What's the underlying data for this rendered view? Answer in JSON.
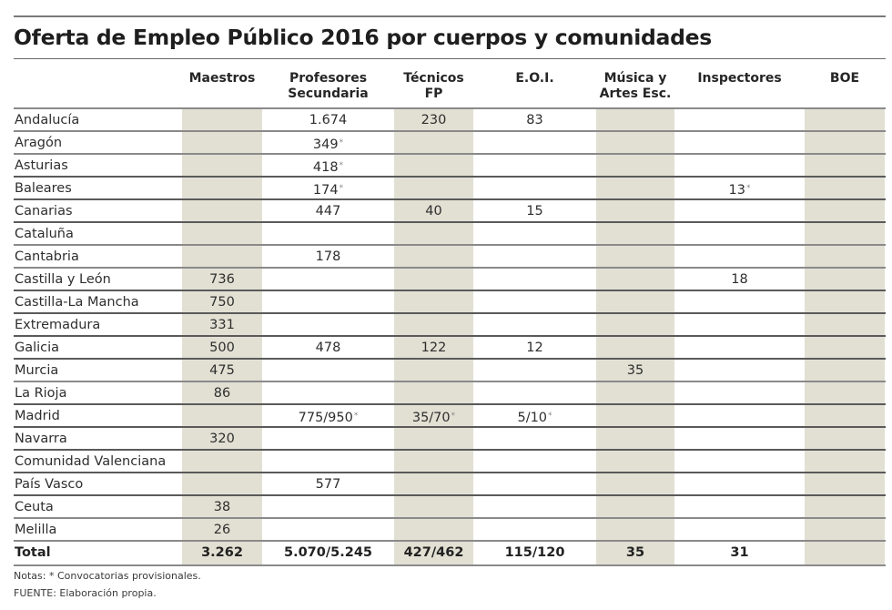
{
  "title": "Oferta de Empleo Público 2016 por cuerpos y comunidades",
  "columns": [
    {
      "key": "maestros",
      "label_line1": "Maestros",
      "label_line2": "",
      "shaded": true
    },
    {
      "key": "secundaria",
      "label_line1": "Profesores",
      "label_line2": "Secundaria",
      "shaded": false
    },
    {
      "key": "tecnicos_fp",
      "label_line1": "Técnicos",
      "label_line2": "FP",
      "shaded": true
    },
    {
      "key": "eoi",
      "label_line1": "E.O.I.",
      "label_line2": "",
      "shaded": false
    },
    {
      "key": "musica",
      "label_line1": "Música y",
      "label_line2": "Artes Esc.",
      "shaded": true
    },
    {
      "key": "inspectores",
      "label_line1": "Inspectores",
      "label_line2": "",
      "shaded": false
    },
    {
      "key": "boe",
      "label_line1": "BOE",
      "label_line2": "",
      "shaded": true
    }
  ],
  "rows": [
    {
      "name": "Andalucía",
      "values": [
        "",
        "1.674",
        "230",
        "83",
        "",
        "",
        ""
      ],
      "provisional": [
        false,
        false,
        false,
        false,
        false,
        false,
        false
      ]
    },
    {
      "name": "Aragón",
      "values": [
        "",
        "349",
        "",
        "",
        "",
        "",
        ""
      ],
      "provisional": [
        false,
        true,
        false,
        false,
        false,
        false,
        false
      ]
    },
    {
      "name": "Asturias",
      "values": [
        "",
        "418",
        "",
        "",
        "",
        "",
        ""
      ],
      "provisional": [
        false,
        true,
        false,
        false,
        false,
        false,
        false
      ]
    },
    {
      "name": "Baleares",
      "values": [
        "",
        "174",
        "",
        "",
        "",
        "13",
        ""
      ],
      "provisional": [
        false,
        true,
        false,
        false,
        false,
        true,
        false
      ]
    },
    {
      "name": "Canarias",
      "values": [
        "",
        "447",
        "40",
        "15",
        "",
        "",
        ""
      ],
      "provisional": [
        false,
        false,
        false,
        false,
        false,
        false,
        false
      ]
    },
    {
      "name": "Cataluña",
      "values": [
        "",
        "",
        "",
        "",
        "",
        "",
        ""
      ],
      "provisional": [
        false,
        false,
        false,
        false,
        false,
        false,
        false
      ]
    },
    {
      "name": "Cantabria",
      "values": [
        "",
        "178",
        "",
        "",
        "",
        "",
        ""
      ],
      "provisional": [
        false,
        false,
        false,
        false,
        false,
        false,
        false
      ]
    },
    {
      "name": "Castilla y León",
      "values": [
        "736",
        "",
        "",
        "",
        "",
        "18",
        ""
      ],
      "provisional": [
        false,
        false,
        false,
        false,
        false,
        false,
        false
      ]
    },
    {
      "name": "Castilla-La Mancha",
      "values": [
        "750",
        "",
        "",
        "",
        "",
        "",
        ""
      ],
      "provisional": [
        false,
        false,
        false,
        false,
        false,
        false,
        false
      ]
    },
    {
      "name": "Extremadura",
      "values": [
        "331",
        "",
        "",
        "",
        "",
        "",
        ""
      ],
      "provisional": [
        false,
        false,
        false,
        false,
        false,
        false,
        false
      ]
    },
    {
      "name": "Galicia",
      "values": [
        "500",
        "478",
        "122",
        "12",
        "",
        "",
        ""
      ],
      "provisional": [
        false,
        false,
        false,
        false,
        false,
        false,
        false
      ]
    },
    {
      "name": "Murcia",
      "values": [
        "475",
        "",
        "",
        "",
        "35",
        "",
        ""
      ],
      "provisional": [
        false,
        false,
        false,
        false,
        false,
        false,
        false
      ]
    },
    {
      "name": "La Rioja",
      "values": [
        "86",
        "",
        "",
        "",
        "",
        "",
        ""
      ],
      "provisional": [
        false,
        false,
        false,
        false,
        false,
        false,
        false
      ]
    },
    {
      "name": "Madrid",
      "values": [
        "",
        "775/950",
        "35/70",
        "5/10",
        "",
        "",
        ""
      ],
      "provisional": [
        false,
        true,
        true,
        true,
        false,
        false,
        false
      ]
    },
    {
      "name": "Navarra",
      "values": [
        "320",
        "",
        "",
        "",
        "",
        "",
        ""
      ],
      "provisional": [
        false,
        false,
        false,
        false,
        false,
        false,
        false
      ]
    },
    {
      "name": "Comunidad Valenciana",
      "values": [
        "",
        "",
        "",
        "",
        "",
        "",
        ""
      ],
      "provisional": [
        false,
        false,
        false,
        false,
        false,
        false,
        false
      ]
    },
    {
      "name": "País Vasco",
      "values": [
        "",
        "577",
        "",
        "",
        "",
        "",
        ""
      ],
      "provisional": [
        false,
        false,
        false,
        false,
        false,
        false,
        false
      ]
    },
    {
      "name": "Ceuta",
      "values": [
        "38",
        "",
        "",
        "",
        "",
        "",
        ""
      ],
      "provisional": [
        false,
        false,
        false,
        false,
        false,
        false,
        false
      ]
    },
    {
      "name": "Melilla",
      "values": [
        "26",
        "",
        "",
        "",
        "",
        "",
        ""
      ],
      "provisional": [
        false,
        false,
        false,
        false,
        false,
        false,
        false
      ]
    }
  ],
  "total": {
    "name": "Total",
    "values": [
      "3.262",
      "5.070/5.245",
      "427/462",
      "115/120",
      "35",
      "31",
      ""
    ]
  },
  "provisional_mark": "*",
  "notes": "Notas: * Convocatorias provisionales.",
  "source": "FUENTE: Elaboración propia.",
  "colors": {
    "shaded_column": "#e1e0d3",
    "rule": "#8a8a8a",
    "text": "#2e2e2e"
  }
}
